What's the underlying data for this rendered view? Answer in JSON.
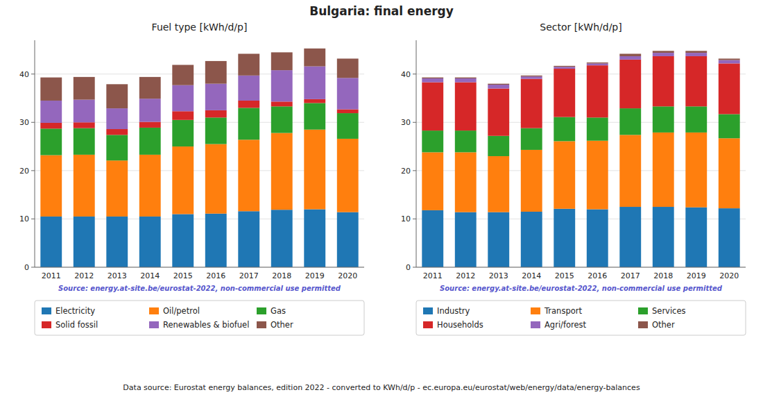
{
  "title": "Bulgaria: final energy",
  "annotations": [
    "Data source: Eurostat energy balances, edition 2022 - converted to KWh/d/p - ec.europa.eu/eurostat/web/energy/data/energy-balances"
  ],
  "chart_data": [
    {
      "type": "bar",
      "stacked": true,
      "grid": true,
      "legend": "bottom",
      "title": "Fuel type [kWh/d/p]",
      "categories": [
        "2011",
        "2012",
        "2013",
        "2014",
        "2015",
        "2016",
        "2017",
        "2018",
        "2019",
        "2020"
      ],
      "series": [
        {
          "name": "Electricity",
          "color": "#1f77b4",
          "values": [
            10.5,
            10.5,
            10.5,
            10.5,
            11.0,
            11.1,
            11.6,
            11.9,
            12.0,
            11.4
          ]
        },
        {
          "name": "Oil/petrol",
          "color": "#ff7f0e",
          "values": [
            12.7,
            12.8,
            11.6,
            12.8,
            14.0,
            14.4,
            14.8,
            15.9,
            16.5,
            15.2
          ]
        },
        {
          "name": "Gas",
          "color": "#2ca02c",
          "values": [
            5.5,
            5.5,
            5.3,
            5.6,
            5.5,
            5.5,
            6.6,
            5.5,
            5.5,
            5.3
          ]
        },
        {
          "name": "Solid fossil",
          "color": "#d62728",
          "values": [
            1.2,
            1.2,
            1.2,
            1.2,
            1.8,
            1.5,
            1.5,
            1.0,
            0.8,
            0.8
          ]
        },
        {
          "name": "Renewables & biofuel",
          "color": "#9467bd",
          "values": [
            4.6,
            4.7,
            4.3,
            4.8,
            5.4,
            5.5,
            5.2,
            6.5,
            6.8,
            6.5
          ]
        },
        {
          "name": "Other",
          "color": "#8c564b",
          "values": [
            4.8,
            4.7,
            5.0,
            4.5,
            4.2,
            4.7,
            4.5,
            3.7,
            3.7,
            4.0
          ]
        }
      ],
      "ylim": [
        0,
        47
      ],
      "yticks": [
        0,
        10,
        20,
        30,
        40
      ],
      "annotations": [
        "Source: energy.at-site.be/eurostat-2022, non-commercial use permitted"
      ]
    },
    {
      "type": "bar",
      "stacked": true,
      "grid": true,
      "legend": "bottom",
      "title": "Sector [kWh/d/p]",
      "categories": [
        "2011",
        "2012",
        "2013",
        "2014",
        "2015",
        "2016",
        "2017",
        "2018",
        "2019",
        "2020"
      ],
      "series": [
        {
          "name": "Industry",
          "color": "#1f77b4",
          "values": [
            11.8,
            11.4,
            11.4,
            11.5,
            12.1,
            12.0,
            12.5,
            12.5,
            12.4,
            12.2
          ]
        },
        {
          "name": "Transport",
          "color": "#ff7f0e",
          "values": [
            12.0,
            12.4,
            11.6,
            12.8,
            14.0,
            14.2,
            14.9,
            15.4,
            15.5,
            14.5
          ]
        },
        {
          "name": "Services",
          "color": "#2ca02c",
          "values": [
            4.5,
            4.5,
            4.2,
            4.5,
            5.0,
            4.8,
            5.5,
            5.4,
            5.4,
            5.0
          ]
        },
        {
          "name": "Households",
          "color": "#d62728",
          "values": [
            10.0,
            10.0,
            9.8,
            10.2,
            10.0,
            10.8,
            10.1,
            10.4,
            10.4,
            10.5
          ]
        },
        {
          "name": "Agri/forest",
          "color": "#9467bd",
          "values": [
            0.8,
            0.8,
            0.8,
            0.5,
            0.4,
            0.4,
            0.7,
            0.7,
            0.7,
            0.7
          ]
        },
        {
          "name": "Other",
          "color": "#8c564b",
          "values": [
            0.2,
            0.2,
            0.2,
            0.2,
            0.2,
            0.2,
            0.5,
            0.4,
            0.4,
            0.3
          ]
        }
      ],
      "ylim": [
        0,
        47
      ],
      "yticks": [
        0,
        10,
        20,
        30,
        40
      ],
      "annotations": [
        "Source: energy.at-site.be/eurostat-2022, non-commercial use permitted"
      ]
    }
  ]
}
